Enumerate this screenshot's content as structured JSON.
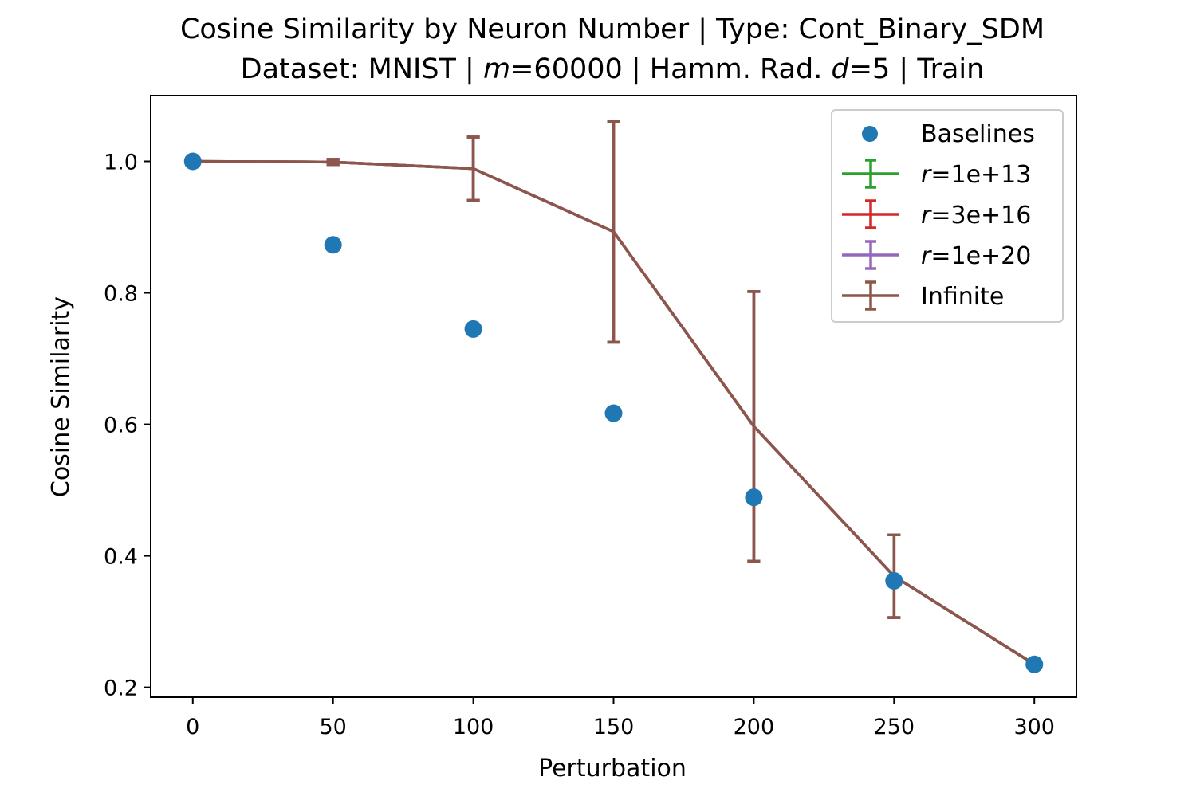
{
  "chart_data": {
    "type": "line",
    "title_line1": "Cosine Similarity by Neuron Number | Type: Cont_Binary_SDM",
    "title_line2": {
      "prefix": "Dataset: MNIST | ",
      "m_symbol": "m",
      "m_value": "=60000 | Hamm. Rad. ",
      "d_symbol": "d",
      "d_value": "=5 | Train"
    },
    "xlabel": "Perturbation",
    "ylabel": "Cosine Similarity",
    "xlim": [
      -15,
      315
    ],
    "ylim": [
      0.185,
      1.1
    ],
    "xticks": [
      0,
      50,
      100,
      150,
      200,
      250,
      300
    ],
    "xtick_labels": [
      "0",
      "50",
      "100",
      "150",
      "200",
      "250",
      "300"
    ],
    "yticks": [
      0.2,
      0.4,
      0.6,
      0.8,
      1.0
    ],
    "ytick_labels": [
      "0.2",
      "0.4",
      "0.6",
      "0.8",
      "1.0"
    ],
    "grid": false,
    "legend_position": "top-right",
    "baselines": {
      "name": "Baselines",
      "color": "#1f77b4",
      "x": [
        0,
        50,
        100,
        150,
        200,
        250,
        300
      ],
      "y": [
        1.0,
        0.873,
        0.745,
        0.617,
        0.489,
        0.362,
        0.235
      ]
    },
    "series": [
      {
        "symbol": "r",
        "label_suffix": "=1e+13",
        "color": "#2ca02c",
        "x": [
          0,
          50,
          100,
          150,
          200,
          250,
          300
        ],
        "y": [
          1.0,
          0.999,
          0.989,
          0.893,
          0.597,
          0.369,
          0.235
        ],
        "yerr": [
          0.0,
          0.004,
          0.048,
          0.168,
          0.205,
          0.063,
          0.006
        ]
      },
      {
        "symbol": "r",
        "label_suffix": "=3e+16",
        "color": "#d62728",
        "x": [
          0,
          50,
          100,
          150,
          200,
          250,
          300
        ],
        "y": [
          1.0,
          0.999,
          0.989,
          0.893,
          0.597,
          0.369,
          0.235
        ],
        "yerr": [
          0.0,
          0.004,
          0.048,
          0.168,
          0.205,
          0.063,
          0.006
        ]
      },
      {
        "symbol": "r",
        "label_suffix": "=1e+20",
        "color": "#9467bd",
        "x": [
          0,
          50,
          100,
          150,
          200,
          250,
          300
        ],
        "y": [
          1.0,
          0.999,
          0.989,
          0.893,
          0.597,
          0.369,
          0.235
        ],
        "yerr": [
          0.0,
          0.004,
          0.048,
          0.168,
          0.205,
          0.063,
          0.006
        ]
      },
      {
        "name": "Infinite",
        "color": "#8c564b",
        "x": [
          0,
          50,
          100,
          150,
          200,
          250,
          300
        ],
        "y": [
          1.0,
          0.999,
          0.989,
          0.893,
          0.597,
          0.369,
          0.235
        ],
        "yerr": [
          0.0,
          0.004,
          0.048,
          0.168,
          0.205,
          0.063,
          0.006
        ]
      }
    ]
  }
}
